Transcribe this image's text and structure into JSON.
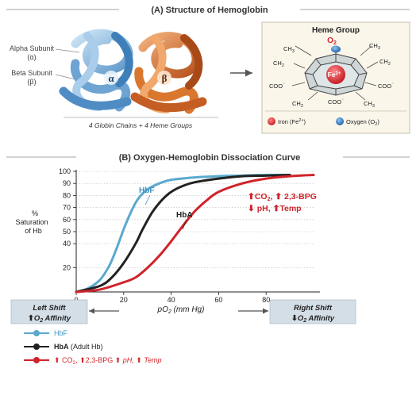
{
  "part_a": {
    "title": "(A) Structure of Hemoglobin",
    "alpha_label": "Alpha Subunit",
    "alpha_symbol": "(α)",
    "beta_label": "Beta Subunit",
    "beta_symbol": "(β)",
    "alpha_letter": "α",
    "beta_letter": "β",
    "caption": "4 Globin Chains + 4 Heme Groups",
    "heme": {
      "title": "Heme Group",
      "o2": "O",
      "o2_sub": "2",
      "fe": "Fe",
      "fe_sup": "2+",
      "ch3": "CH",
      "ch3_sub": "3",
      "ch2": "CH",
      "ch2_sub": "2",
      "coo": "COO",
      "coo_sup": "⁻",
      "legend_iron": "Iron (Fe",
      "legend_iron_sup": "2+",
      "legend_iron_end": ")",
      "legend_oxygen": "Oxygen (O",
      "legend_oxygen_sub": "2",
      "legend_oxygen_end": ")",
      "iron_color": "#d8232a",
      "oxygen_color": "#1f6fb8"
    }
  },
  "part_b": {
    "title": "(B) Oxygen-Hemoglobin Dissociation Curve",
    "ylabel_line1": "%",
    "ylabel_line2": "Saturation",
    "ylabel_line3": "of Hb",
    "xlabel_p": "pO",
    "xlabel_sub": "2",
    "xlabel_unit": " (mm Hg)",
    "curve_label_hbf": "HbF",
    "curve_label_hba": "HbA",
    "right_annot_line1": "CO",
    "right_annot_line1_sub": "2",
    "right_annot_line1_b": ", ",
    "right_annot_line1_c": "2,3-BPG",
    "right_annot_line2": "pH, ",
    "right_annot_line2_b": "Temp",
    "left_box_line1": "Left Shift",
    "left_box_line2": "O",
    "left_box_line2_sub": "2",
    "left_box_line2_end": " Affinity",
    "right_box_line1": "Right  Shift",
    "right_box_line2": "O",
    "right_box_line2_sub": "2",
    "right_box_line2_end": " Affinity",
    "legend": {
      "hbf": "HbF",
      "hba_bold": "HbA",
      "hba_rest": " (Adult Hb)",
      "shift": "CO",
      "shift_sub": "2",
      "shift_rest": ", ",
      "shift_bpg": "2,3-BPG ",
      "shift_ph": "pH, ",
      "shift_temp": "Temp"
    }
  },
  "chart_data": {
    "type": "line",
    "title": "(B) Oxygen-Hemoglobin Dissociation Curve",
    "xlabel": "pO2 (mm Hg)",
    "ylabel": "% Saturation of Hb",
    "xlim": [
      0,
      100
    ],
    "ylim": [
      0,
      100
    ],
    "xticks": [
      0,
      20,
      40,
      60,
      80
    ],
    "yticks": [
      20,
      40,
      50,
      60,
      70,
      80,
      90,
      100
    ],
    "series": [
      {
        "name": "HbF",
        "color": "#5aa9cf",
        "x": [
          0,
          5,
          10,
          14,
          17,
          20,
          23,
          26,
          30,
          35,
          40,
          50,
          60,
          70,
          80,
          90
        ],
        "y": [
          0,
          3,
          10,
          22,
          36,
          52,
          66,
          77,
          85,
          90,
          93,
          95,
          96,
          96.5,
          97,
          97
        ]
      },
      {
        "name": "HbA",
        "color": "#222222",
        "x": [
          0,
          10,
          15,
          20,
          25,
          28,
          32,
          36,
          40,
          45,
          50,
          60,
          70,
          80,
          90
        ],
        "y": [
          0,
          5,
          12,
          24,
          40,
          52,
          66,
          76,
          83,
          88,
          91,
          94,
          96,
          96.5,
          97
        ]
      },
      {
        "name": "",
        "color": "#d0232a",
        "x": [
          0,
          10,
          20,
          25,
          30,
          35,
          40,
          45,
          50,
          55,
          60,
          70,
          80,
          90,
          100
        ],
        "y": [
          0,
          2,
          8,
          12,
          20,
          30,
          42,
          55,
          67,
          76,
          83,
          90,
          94,
          96,
          97
        ]
      }
    ]
  }
}
